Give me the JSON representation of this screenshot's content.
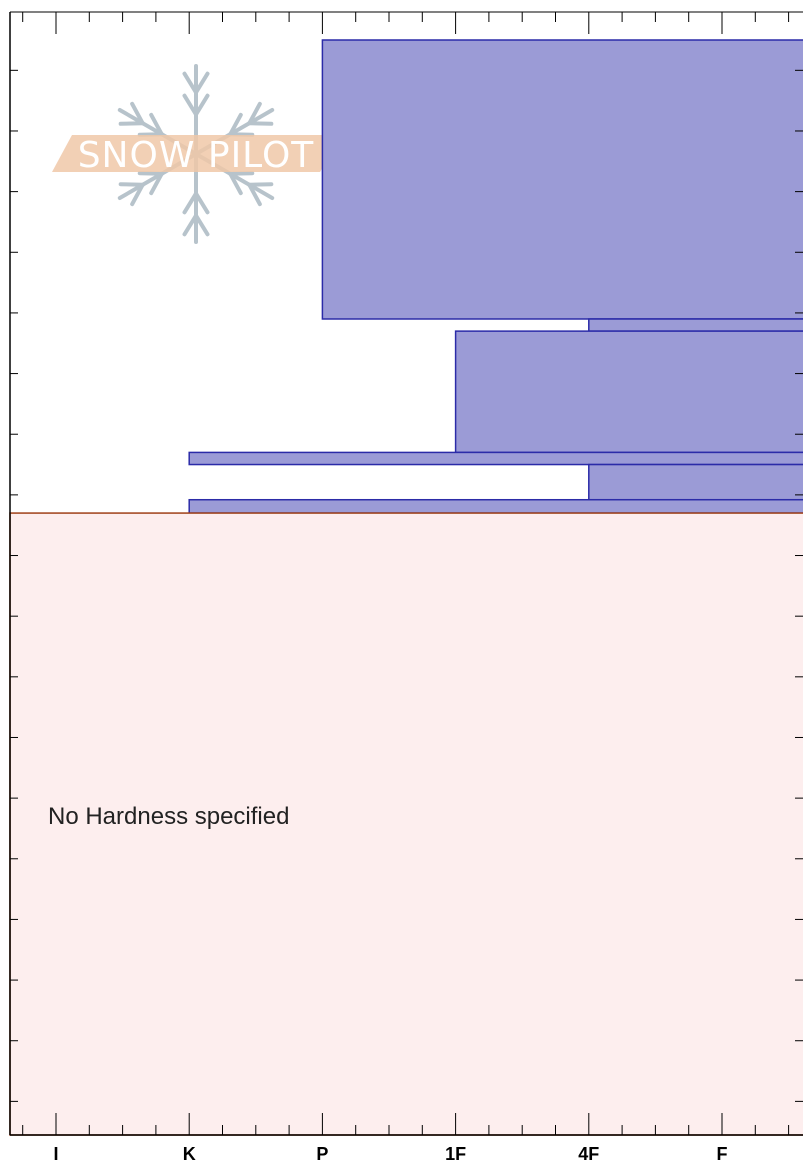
{
  "chart_data": {
    "type": "bar",
    "orientation": "horizontal",
    "x_categories": [
      "I",
      "K",
      "P",
      "1F",
      "4F",
      "F"
    ],
    "hardness_layers": [
      {
        "top_depth": 0.0,
        "bottom_depth": 2.3,
        "hardness": "P"
      },
      {
        "top_depth": 2.3,
        "bottom_depth": 2.4,
        "hardness": "4F"
      },
      {
        "top_depth": 2.4,
        "bottom_depth": 3.4,
        "hardness": "1F"
      },
      {
        "top_depth": 3.4,
        "bottom_depth": 3.5,
        "hardness": "K"
      },
      {
        "top_depth": 3.5,
        "bottom_depth": 3.79,
        "hardness": "4F"
      },
      {
        "top_depth": 3.79,
        "bottom_depth": 3.9,
        "hardness": "K"
      }
    ],
    "unspecified_region": {
      "top_depth": 3.9,
      "bottom_depth": 8.9,
      "label": "No Hardness specified"
    },
    "depth_range": [
      -0.25,
      8.9
    ],
    "grid": false
  },
  "logo": {
    "text": "SNOW PILOT",
    "band_color": "#f0c8a8",
    "flake_color": "#b7c3cb"
  },
  "colors": {
    "layer_fill": "#9b9bd6",
    "layer_stroke": "#2b2ba8",
    "unspecified_fill": "#fdeeee",
    "unspecified_stroke": "#a04018"
  }
}
